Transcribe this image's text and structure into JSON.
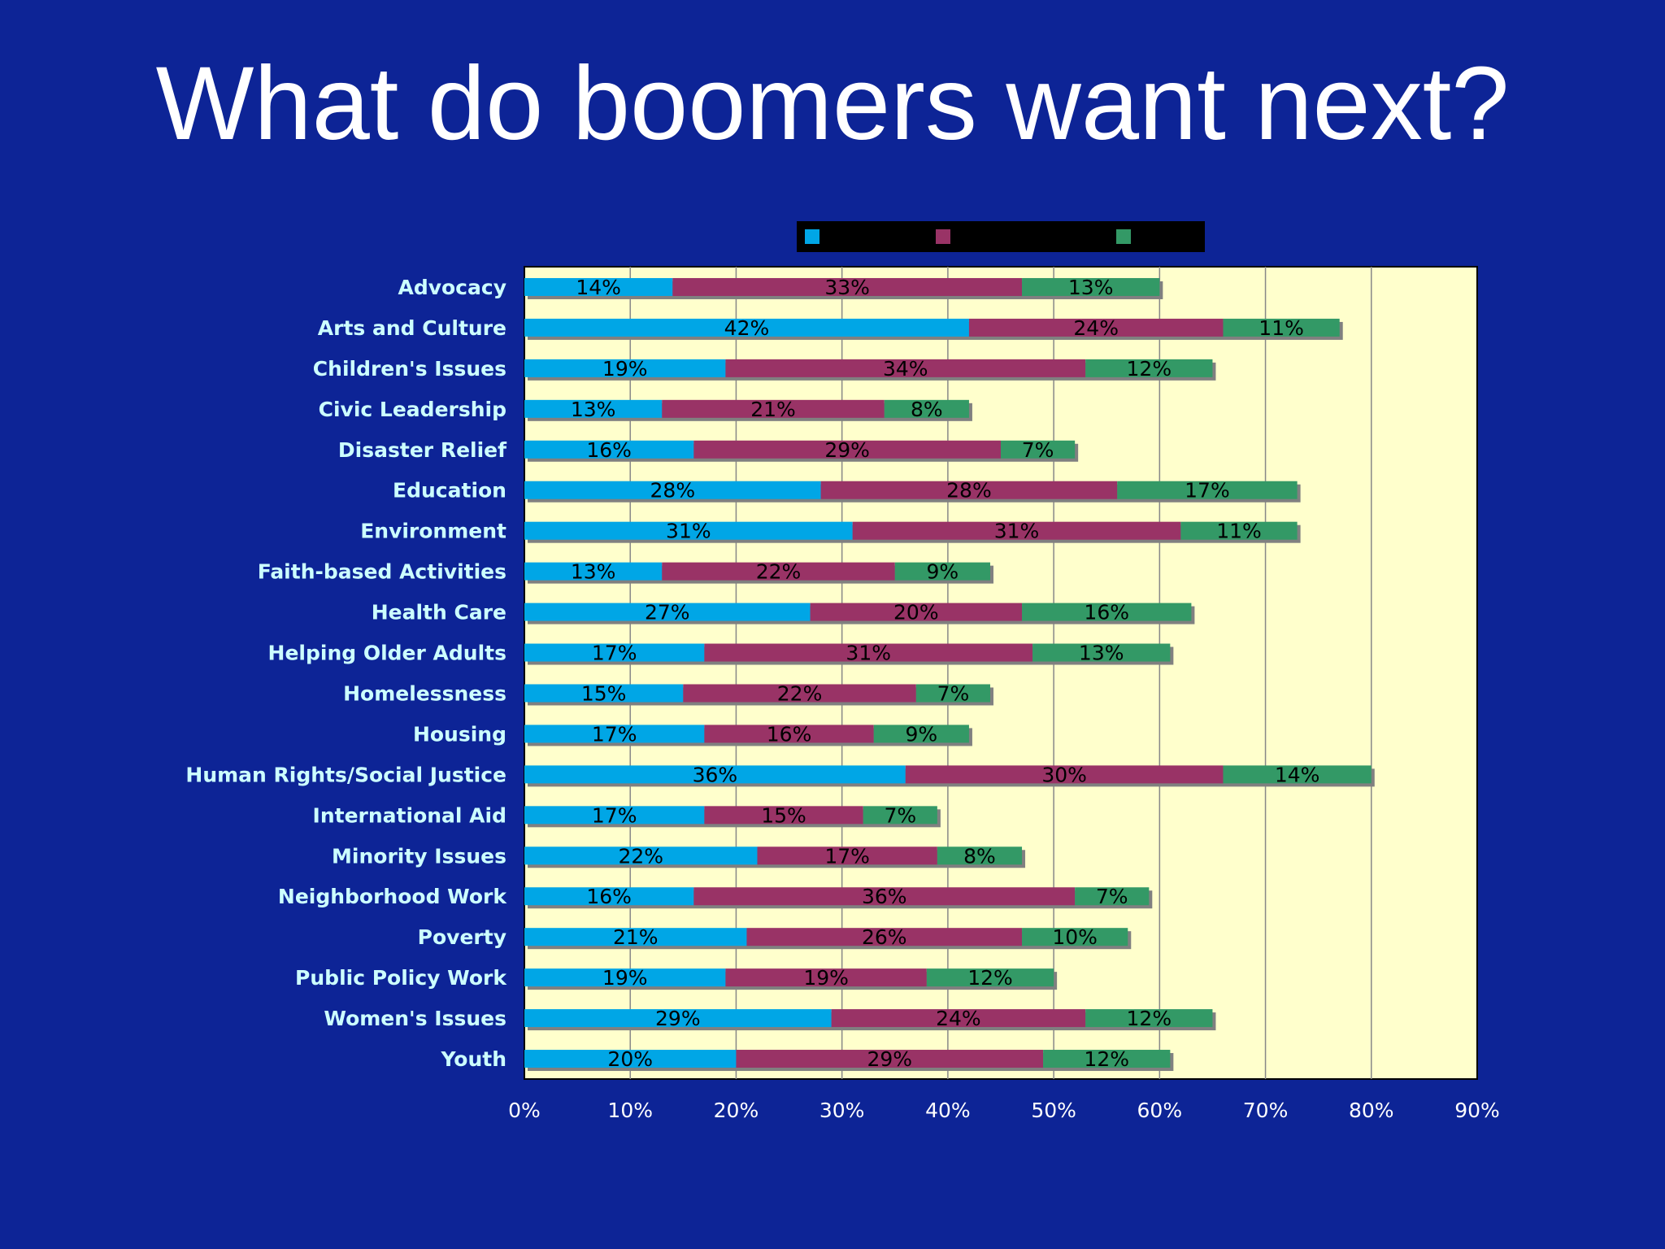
{
  "slide": {
    "title": "What do boomers want next?"
  },
  "colors": {
    "background": "#0d2496",
    "plot_area": "#ffffcc",
    "legend_box": "#000000",
    "category_label": "#ccffff",
    "tick_label": "#ffffff",
    "data_label": "#000000"
  },
  "chart_data": {
    "type": "bar",
    "orientation": "horizontal",
    "stacked": true,
    "categories": [
      "Advocacy",
      "Arts and Culture",
      "Children's Issues",
      "Civic Leadership",
      "Disaster Relief",
      "Education",
      "Environment",
      "Faith-based Activities",
      "Health Care",
      "Helping Older Adults",
      "Homelessness",
      "Housing",
      "Human Rights/Social Justice",
      "International Aid",
      "Minority Issues",
      "Neighborhood Work",
      "Poverty",
      "Public Policy Work",
      "Women's Issues",
      "Youth"
    ],
    "series": [
      {
        "color": "#00a6e6",
        "values": [
          14,
          42,
          19,
          13,
          16,
          28,
          31,
          13,
          27,
          17,
          15,
          17,
          36,
          17,
          22,
          16,
          21,
          19,
          29,
          20
        ]
      },
      {
        "color": "#993366",
        "values": [
          33,
          24,
          34,
          21,
          29,
          28,
          31,
          22,
          20,
          31,
          22,
          16,
          30,
          15,
          17,
          36,
          26,
          19,
          24,
          29
        ]
      },
      {
        "color": "#339966",
        "values": [
          13,
          11,
          12,
          8,
          7,
          17,
          11,
          9,
          16,
          13,
          7,
          9,
          14,
          7,
          8,
          7,
          10,
          12,
          12,
          12
        ]
      }
    ],
    "value_format": "{v}%",
    "xlim": [
      0,
      90
    ],
    "xticks": [
      "0%",
      "10%",
      "20%",
      "30%",
      "40%",
      "50%",
      "60%",
      "70%",
      "80%",
      "90%"
    ],
    "grid": "vertical major gridlines",
    "legend": {
      "position": "top",
      "entries_text_visible": false
    },
    "data_labels": true
  }
}
